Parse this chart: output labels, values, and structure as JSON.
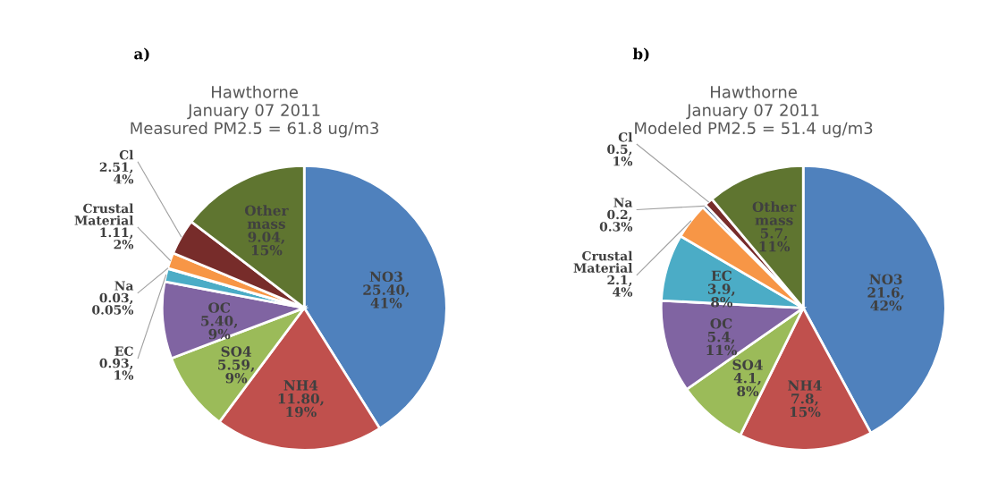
{
  "chart_data": [
    {
      "type": "pie",
      "title": "Hawthorne\nJanuary 07 2011\nMeasured PM2.5 = 61.8 ug/m3",
      "annotations": [
        "a)"
      ],
      "categories": [
        "NO3",
        "NH4",
        "SO4",
        "OC",
        "EC",
        "Na",
        "Crustal Material",
        "Cl",
        "Other mass"
      ],
      "values": [
        25.4,
        11.8,
        5.59,
        5.4,
        0.93,
        0.03,
        1.11,
        2.51,
        9.04
      ],
      "value_labels": [
        "25.40, 41%",
        "11.80, 19%",
        "5.59, 9%",
        "5.40, 9%",
        "0.93, 1%",
        "0.03, 0.05%",
        "1.11, 2%",
        "2.51, 4%",
        "9.04, 15%"
      ],
      "colors": [
        "#4f81bd",
        "#c0504d",
        "#9bbb59",
        "#8064a2",
        "#4bacc6",
        "#2c4d75",
        "#f79646",
        "#772c2a",
        "#5f7530"
      ]
    },
    {
      "type": "pie",
      "title": "Hawthorne\nJanuary 07 2011\nModeled PM2.5 = 51.4 ug/m3",
      "annotations": [
        "b)"
      ],
      "categories": [
        "NO3",
        "NH4",
        "SO4",
        "OC",
        "EC",
        "Crustal Material",
        "Na",
        "Cl",
        "Other mass"
      ],
      "values": [
        21.6,
        7.8,
        4.1,
        5.4,
        3.9,
        2.1,
        0.2,
        0.5,
        5.7
      ],
      "value_labels": [
        "21.6, 42%",
        "7.8, 15%",
        "4.1, 8%",
        "5.4, 11%",
        "3.9, 8%",
        "2.1, 4%",
        "0.2, 0.3%",
        "0.5, 1%",
        "5.7, 11%"
      ],
      "colors": [
        "#4f81bd",
        "#c0504d",
        "#9bbb59",
        "#8064a2",
        "#4bacc6",
        "#f79646",
        "#2c4d75",
        "#772c2a",
        "#5f7530"
      ]
    }
  ]
}
